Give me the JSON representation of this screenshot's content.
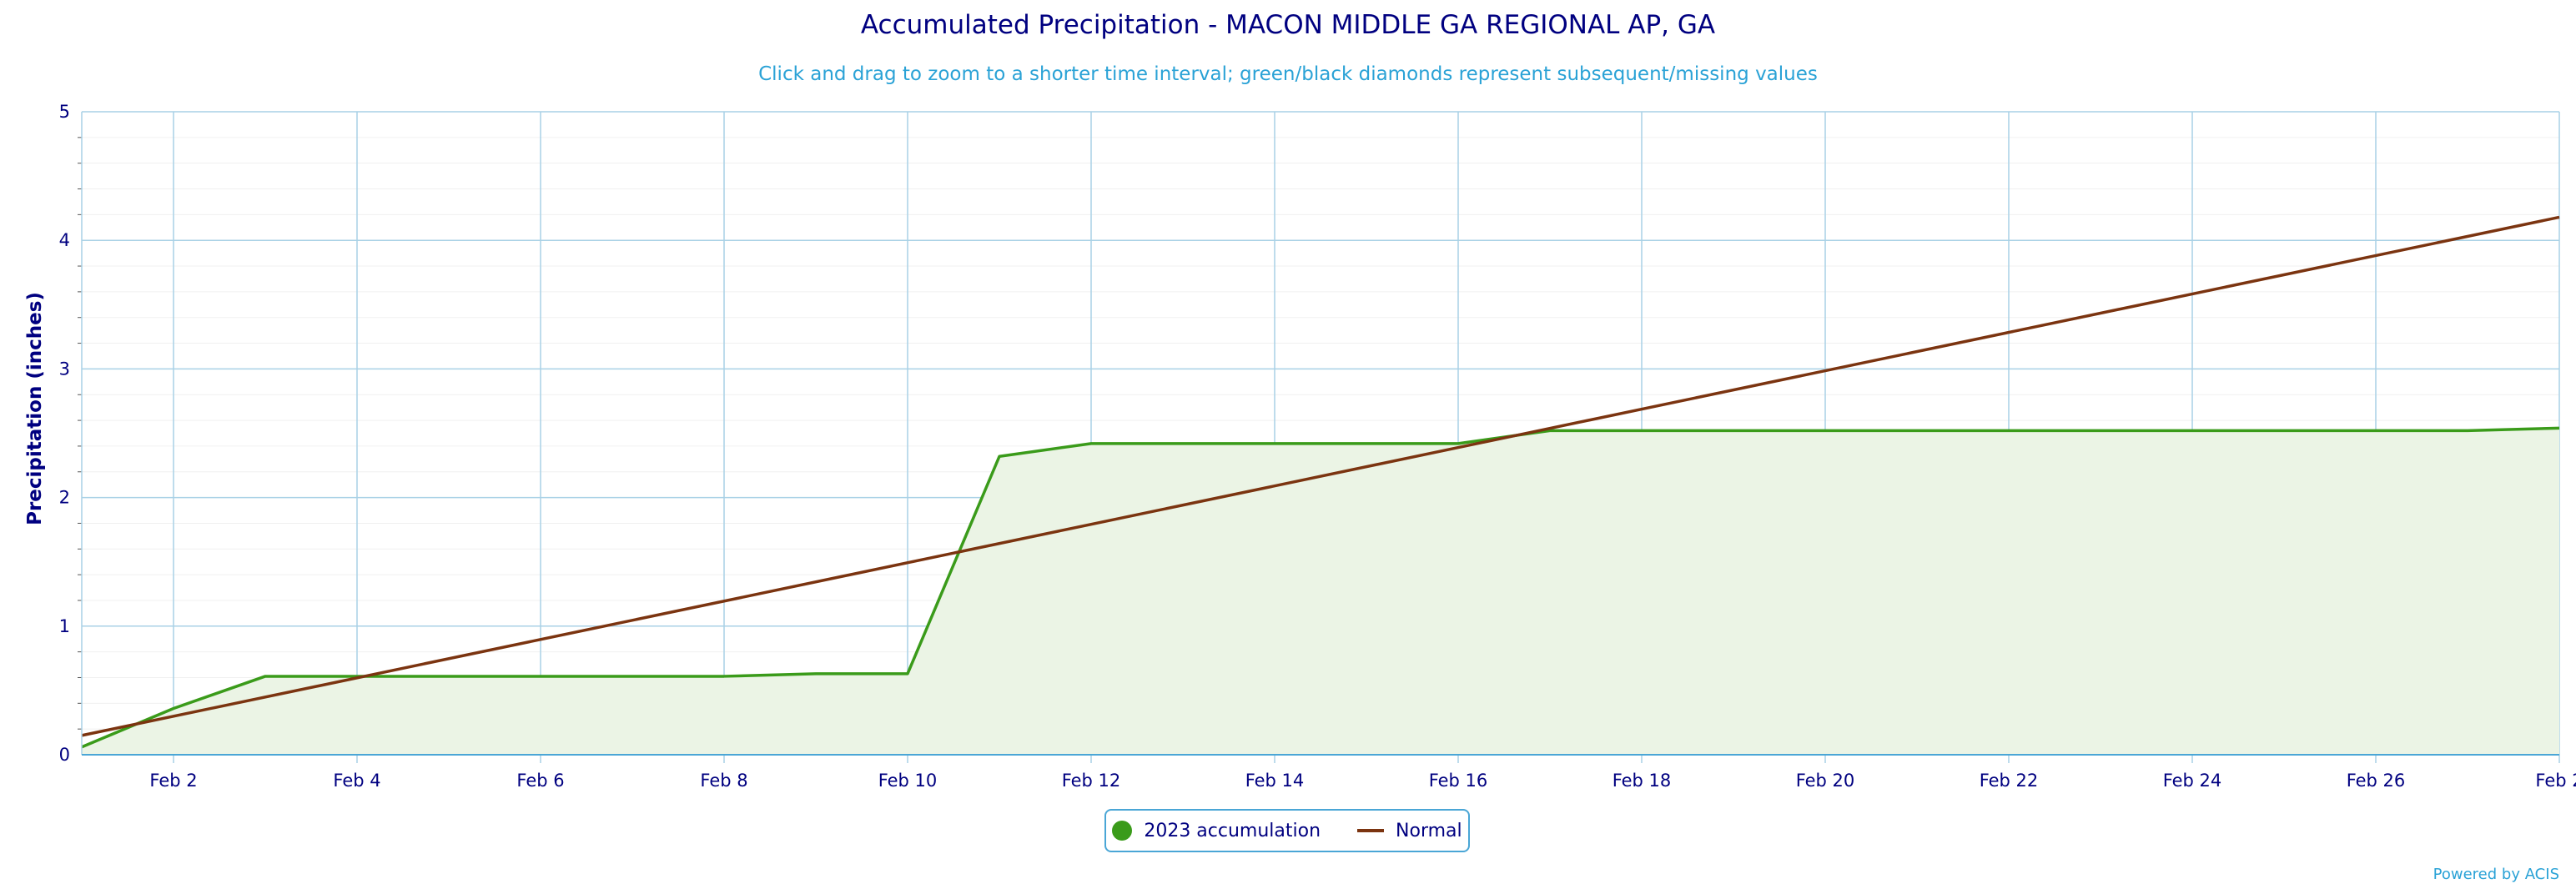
{
  "title": "Accumulated Precipitation - MACON MIDDLE GA REGIONAL AP, GA",
  "subtitle": "Click and drag to zoom to a shorter time interval; green/black diamonds represent subsequent/missing values",
  "credits": "Powered by ACIS",
  "colors": {
    "accumulation": "#3a9b1a",
    "accumulation_fill": "#ebf4e5",
    "normal": "#7b3410",
    "grid": "#a9d1e6",
    "axis_text": "#000080"
  },
  "chart_data": {
    "type": "line",
    "ylabel": "Precipitation (inches)",
    "xlabel": "",
    "ylim": [
      0,
      5
    ],
    "yticks": [
      "0",
      "1",
      "2",
      "3",
      "4",
      "5"
    ],
    "xlim": [
      "Feb 1",
      "Feb 28"
    ],
    "xticks": [
      "Feb 2",
      "Feb 4",
      "Feb 6",
      "Feb 8",
      "Feb 10",
      "Feb 12",
      "Feb 14",
      "Feb 16",
      "Feb 18",
      "Feb 20",
      "Feb 22",
      "Feb 24",
      "Feb 26",
      "Feb 2"
    ],
    "grid": true,
    "legend_position": "bottom-center",
    "series": [
      {
        "name": "2023 accumulation",
        "type": "area",
        "x": [
          "Feb 1",
          "Feb 2",
          "Feb 3",
          "Feb 4",
          "Feb 5",
          "Feb 6",
          "Feb 7",
          "Feb 8",
          "Feb 9",
          "Feb 10",
          "Feb 11",
          "Feb 12",
          "Feb 13",
          "Feb 14",
          "Feb 15",
          "Feb 16",
          "Feb 17",
          "Feb 18",
          "Feb 19",
          "Feb 20",
          "Feb 21",
          "Feb 22",
          "Feb 23",
          "Feb 24",
          "Feb 25",
          "Feb 26",
          "Feb 27",
          "Feb 28"
        ],
        "values": [
          0.06,
          0.36,
          0.61,
          0.61,
          0.61,
          0.61,
          0.61,
          0.61,
          0.63,
          0.63,
          2.32,
          2.42,
          2.42,
          2.42,
          2.42,
          2.42,
          2.52,
          2.52,
          2.52,
          2.52,
          2.52,
          2.52,
          2.52,
          2.52,
          2.52,
          2.52,
          2.52,
          2.54
        ]
      },
      {
        "name": "Normal",
        "type": "line",
        "x": [
          "Feb 1",
          "Feb 28"
        ],
        "values": [
          0.15,
          4.18
        ]
      }
    ]
  }
}
